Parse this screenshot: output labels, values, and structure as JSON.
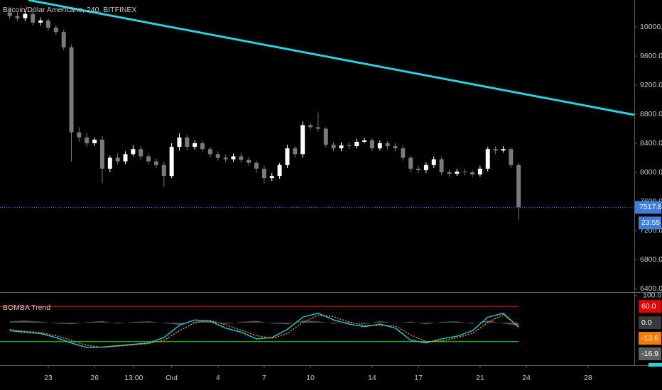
{
  "chart_data": [
    {
      "type": "candlestick",
      "title": "Bitcoin/Dólar Americano, 240, BITFINEX",
      "x": [
        -2.5,
        -2,
        -1.5,
        -1,
        -0.5,
        0,
        0.5,
        1,
        1.5,
        2,
        2.5,
        3,
        3.5,
        4,
        4.5,
        5,
        5.5,
        6,
        6.5,
        7,
        7.5,
        8,
        8.5,
        9,
        9.5,
        10,
        10.5,
        11,
        11.5,
        12,
        12.5,
        13,
        13.5,
        14,
        14.5,
        15,
        15.5,
        16,
        16.5,
        17,
        17.5,
        18,
        18.5,
        19,
        19.5,
        20,
        20.5,
        21,
        21.5,
        22,
        22.5,
        23,
        23.5,
        24,
        24.5,
        25,
        25.5,
        26,
        26.5,
        27,
        27.5,
        28,
        28.5,
        29,
        29.5,
        30,
        30.5
      ],
      "open": [
        10200,
        10150,
        10120,
        10180,
        10060,
        10090,
        9990,
        9930,
        9720,
        8550,
        8480,
        8400,
        8450,
        8050,
        8200,
        8150,
        8250,
        8320,
        8220,
        8150,
        8100,
        7950,
        8350,
        8480,
        8350,
        8400,
        8320,
        8250,
        8200,
        8180,
        8220,
        8170,
        8130,
        8050,
        7920,
        7950,
        8100,
        8330,
        8250,
        8650,
        8620,
        8600,
        8380,
        8330,
        8370,
        8360,
        8420,
        8440,
        8330,
        8400,
        8360,
        8330,
        8200,
        8050,
        8030,
        8100,
        8180,
        8000,
        7980,
        8010,
        8000,
        7970,
        8050,
        8320,
        8300,
        8320,
        8100
      ],
      "high": [
        10260,
        10200,
        10220,
        10220,
        10130,
        10120,
        10030,
        9960,
        9760,
        8620,
        8540,
        8480,
        8500,
        8230,
        8260,
        8290,
        8370,
        8360,
        8260,
        8190,
        8140,
        8400,
        8540,
        8520,
        8440,
        8430,
        8350,
        8290,
        8240,
        8260,
        8270,
        8210,
        8160,
        8090,
        7990,
        8130,
        8380,
        8360,
        8700,
        8680,
        8820,
        8620,
        8420,
        8410,
        8410,
        8460,
        8480,
        8470,
        8440,
        8430,
        8400,
        8370,
        8230,
        8090,
        8140,
        8220,
        8210,
        8030,
        8050,
        8050,
        8030,
        8090,
        8350,
        8360,
        8360,
        8340,
        8130
      ],
      "low": [
        10110,
        10080,
        10080,
        10020,
        10020,
        9950,
        9890,
        9680,
        8150,
        8420,
        8350,
        8360,
        7850,
        8000,
        8110,
        8110,
        8220,
        8170,
        8110,
        8060,
        7800,
        7920,
        8300,
        8300,
        8310,
        8280,
        8210,
        8160,
        8140,
        8140,
        8130,
        8090,
        7990,
        7850,
        7880,
        7910,
        8060,
        8200,
        8200,
        8580,
        8560,
        8340,
        8290,
        8290,
        8320,
        8330,
        8400,
        8290,
        8300,
        8320,
        8290,
        8160,
        8000,
        7990,
        7990,
        8060,
        7960,
        7940,
        7950,
        7960,
        7930,
        7940,
        8010,
        8250,
        8270,
        8060,
        7350
      ],
      "close": [
        10150,
        10120,
        10180,
        10060,
        10090,
        9990,
        9930,
        9720,
        8550,
        8480,
        8400,
        8450,
        8050,
        8200,
        8150,
        8250,
        8320,
        8220,
        8150,
        8100,
        7950,
        8350,
        8480,
        8350,
        8400,
        8320,
        8250,
        8200,
        8180,
        8220,
        8170,
        8130,
        8050,
        7920,
        7950,
        8100,
        8330,
        8250,
        8650,
        8620,
        8600,
        8380,
        8330,
        8370,
        8360,
        8420,
        8440,
        8330,
        8400,
        8360,
        8330,
        8200,
        8050,
        8030,
        8100,
        8180,
        8000,
        7980,
        8010,
        8000,
        7970,
        8050,
        8320,
        8300,
        8320,
        8100,
        7518
      ],
      "up_color": "#ffffff",
      "down_color": "#7a7a7a",
      "xlim": [
        -3.13,
        38
      ],
      "ylim": [
        6351,
        10371
      ],
      "xticks": [
        {
          "value": 0,
          "label": "23"
        },
        {
          "value": 3,
          "label": "26"
        },
        {
          "value": 5.54,
          "label": "13:00"
        },
        {
          "value": 8,
          "label": "Out"
        },
        {
          "value": 11,
          "label": "4"
        },
        {
          "value": 14,
          "label": "7"
        },
        {
          "value": 17,
          "label": "10"
        },
        {
          "value": 21,
          "label": "14"
        },
        {
          "value": 24,
          "label": "17"
        },
        {
          "value": 28,
          "label": "21"
        },
        {
          "value": 31,
          "label": "24"
        },
        {
          "value": 35,
          "label": "28"
        }
      ],
      "yticks": [
        {
          "value": 6400,
          "label": "6400.0"
        },
        {
          "value": 6800,
          "label": "6800.0"
        },
        {
          "value": 7200,
          "label": "7200.0"
        },
        {
          "value": 7600,
          "label": "7600.0"
        },
        {
          "value": 8000,
          "label": "8000.0"
        },
        {
          "value": 8400,
          "label": "8400.0"
        },
        {
          "value": 8800,
          "label": "8800.0"
        },
        {
          "value": 9200,
          "label": "9200.0"
        },
        {
          "value": 9600,
          "label": "9600.0"
        },
        {
          "value": 10000,
          "label": "10000.0"
        }
      ],
      "trendline": {
        "x": [
          -1.29,
          38
        ],
        "y": [
          10371,
          8790
        ],
        "color": "#26d4e0"
      },
      "last_price": {
        "value": 7517.8,
        "label": "7517.8",
        "countdown": "23:55",
        "color": "#3d7fd9"
      }
    },
    {
      "type": "line",
      "title": "BOMBA Trend",
      "x": [
        -2.5,
        -1.5,
        -0.5,
        0.5,
        1.5,
        2.5,
        3.5,
        4.5,
        5.5,
        6.5,
        7.5,
        8.5,
        9.5,
        10.5,
        11.5,
        12.5,
        13.5,
        14.5,
        15.5,
        16.5,
        17.5,
        18.5,
        19.5,
        20.5,
        21.5,
        22.5,
        23.5,
        24.5,
        25.5,
        26.5,
        27.5,
        28.5,
        29.5,
        30.5
      ],
      "series": [
        {
          "color": "#6a6a6a",
          "style": "area",
          "values": [
            5,
            8,
            4,
            -3,
            -6,
            2,
            6,
            -4,
            3,
            5,
            -2,
            -8,
            4,
            6,
            -5,
            3,
            7,
            -3,
            -6,
            8,
            5,
            -4,
            3,
            -5,
            6,
            -2,
            4,
            -6,
            3,
            5,
            -4,
            8,
            -3,
            -12
          ]
        },
        {
          "color": "#1fc8e0",
          "style": "solid",
          "values": [
            -30,
            -35,
            -40,
            -55,
            -75,
            -92,
            -90,
            -85,
            -80,
            -75,
            -55,
            -10,
            10,
            5,
            -20,
            -35,
            -60,
            -55,
            -25,
            20,
            35,
            10,
            -5,
            -15,
            -5,
            -20,
            -65,
            -75,
            -60,
            -50,
            -30,
            20,
            35,
            -16.9
          ]
        },
        {
          "color": "#ff9800",
          "style": "dotted",
          "values": [
            -25,
            -32,
            -37,
            -48,
            -65,
            -84,
            -91,
            -87,
            -82,
            -77,
            -65,
            -30,
            0,
            8,
            -8,
            -28,
            -48,
            -58,
            -40,
            0,
            28,
            22,
            2,
            -10,
            -10,
            -12,
            -45,
            -70,
            -68,
            -55,
            -40,
            0,
            30,
            -13.6
          ]
        }
      ],
      "levels": [
        {
          "value": 60,
          "color": "#e01010"
        },
        {
          "value": -70,
          "color": "#1bc41b"
        }
      ],
      "xlim": [
        -3.13,
        38
      ],
      "ylim": [
        -157,
        110
      ],
      "yticks": [
        {
          "value": 100,
          "label": "100.0"
        }
      ],
      "badges": [
        {
          "value": 60,
          "label": "60.0",
          "color": "#e00000"
        },
        {
          "value": 0,
          "label": "0.0",
          "color": "#3a3a3a"
        },
        {
          "value": -13.6,
          "label": "-13.6",
          "color": "#f57c00"
        },
        {
          "value": -16.9,
          "label": "-16.9",
          "color": "#5e5e5e"
        }
      ]
    }
  ]
}
